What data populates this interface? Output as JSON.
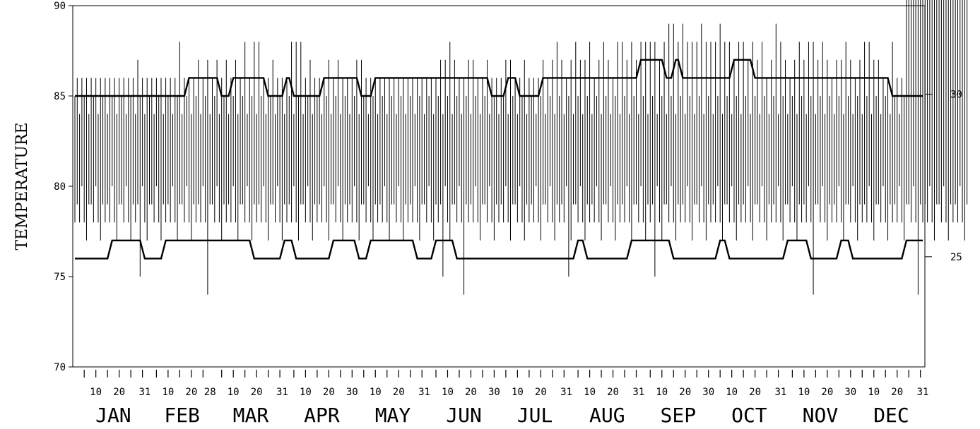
{
  "chart_data": {
    "type": "line",
    "title": "",
    "xlabel": "",
    "ylabel": "TEMPERATURE",
    "ylim": [
      70,
      90
    ],
    "yticks": [
      "70",
      "75",
      "80",
      "85",
      "90"
    ],
    "y2ticks": [
      {
        "label": "30",
        "value_left_axis": 85.1
      },
      {
        "label": "25",
        "value_left_axis": 76.1
      }
    ],
    "x_day_range": [
      1,
      365
    ],
    "months": [
      "JAN",
      "FEB",
      "MAR",
      "APR",
      "MAY",
      "JUN",
      "JUL",
      "AUG",
      "SEP",
      "OCT",
      "NOV",
      "DEC"
    ],
    "month_day_ticks": [
      [
        "10",
        "20",
        "31"
      ],
      [
        "10",
        "20",
        "28"
      ],
      [
        "10",
        "20",
        "31"
      ],
      [
        "10",
        "20",
        "30"
      ],
      [
        "10",
        "20",
        "31"
      ],
      [
        "10",
        "20",
        "30"
      ],
      [
        "10",
        "20",
        "31"
      ],
      [
        "10",
        "20",
        "31"
      ],
      [
        "10",
        "20",
        "30"
      ],
      [
        "10",
        "20",
        "31"
      ],
      [
        "10",
        "20",
        "30"
      ],
      [
        "10",
        "20",
        "31"
      ]
    ],
    "series": [
      {
        "type": "step",
        "points": [
          [
            1,
            85
          ],
          [
            48,
            85
          ],
          [
            50,
            86
          ],
          [
            62,
            86
          ],
          [
            64,
            85
          ],
          [
            67,
            85
          ],
          [
            69,
            86
          ],
          [
            82,
            86
          ],
          [
            84,
            85
          ],
          [
            90,
            85
          ],
          [
            92,
            86
          ],
          [
            93,
            86
          ],
          [
            95,
            85
          ],
          [
            106,
            85
          ],
          [
            108,
            86
          ],
          [
            122,
            86
          ],
          [
            124,
            85
          ],
          [
            128,
            85
          ],
          [
            130,
            86
          ],
          [
            178,
            86
          ],
          [
            180,
            85
          ],
          [
            185,
            85
          ],
          [
            187,
            86
          ],
          [
            190,
            86
          ],
          [
            192,
            85
          ],
          [
            200,
            85
          ],
          [
            202,
            86
          ],
          [
            242,
            86
          ],
          [
            244,
            87
          ],
          [
            253,
            87
          ],
          [
            255,
            86
          ],
          [
            257,
            86
          ],
          [
            259,
            87
          ],
          [
            260,
            87
          ],
          [
            262,
            86
          ],
          [
            282,
            86
          ],
          [
            284,
            87
          ],
          [
            291,
            87
          ],
          [
            293,
            86
          ],
          [
            350,
            86
          ],
          [
            352,
            85
          ],
          [
            365,
            85
          ]
        ]
      },
      {
        "type": "step",
        "points": [
          [
            1,
            76
          ],
          [
            15,
            76
          ],
          [
            17,
            77
          ],
          [
            29,
            77
          ],
          [
            31,
            76
          ],
          [
            38,
            76
          ],
          [
            40,
            77
          ],
          [
            76,
            77
          ],
          [
            78,
            76
          ],
          [
            89,
            76
          ],
          [
            91,
            77
          ],
          [
            94,
            77
          ],
          [
            96,
            76
          ],
          [
            110,
            76
          ],
          [
            112,
            77
          ],
          [
            121,
            77
          ],
          [
            123,
            76
          ],
          [
            126,
            76
          ],
          [
            128,
            77
          ],
          [
            146,
            77
          ],
          [
            148,
            76
          ],
          [
            154,
            76
          ],
          [
            156,
            77
          ],
          [
            163,
            77
          ],
          [
            165,
            76
          ],
          [
            215,
            76
          ],
          [
            217,
            77
          ],
          [
            219,
            77
          ],
          [
            221,
            76
          ],
          [
            238,
            76
          ],
          [
            240,
            77
          ],
          [
            256,
            77
          ],
          [
            258,
            76
          ],
          [
            276,
            76
          ],
          [
            278,
            77
          ],
          [
            280,
            77
          ],
          [
            282,
            76
          ],
          [
            305,
            76
          ],
          [
            307,
            77
          ],
          [
            315,
            77
          ],
          [
            317,
            76
          ],
          [
            328,
            76
          ],
          [
            330,
            77
          ],
          [
            333,
            77
          ],
          [
            335,
            76
          ],
          [
            356,
            76
          ],
          [
            358,
            77
          ],
          [
            364,
            77
          ],
          [
            365,
            77
          ]
        ]
      },
      {
        "type": "daily-range",
        "note_values": "daily min/max temperature bars, one per day",
        "min": [
          78,
          79,
          78,
          80,
          78,
          77,
          79,
          79,
          78,
          80,
          78,
          77,
          79,
          78,
          79,
          78,
          80,
          78,
          77,
          79,
          79,
          78,
          80,
          78,
          77,
          79,
          78,
          79,
          75,
          80,
          78,
          77,
          79,
          79,
          78,
          80,
          78,
          77,
          79,
          78,
          79,
          78,
          80,
          78,
          77,
          79,
          79,
          78,
          80,
          78,
          77,
          79,
          78,
          79,
          78,
          80,
          78,
          74,
          79,
          79,
          78,
          80,
          78,
          77,
          79,
          78,
          79,
          78,
          80,
          78,
          77,
          79,
          79,
          78,
          80,
          78,
          77,
          79,
          78,
          79,
          78,
          80,
          78,
          77,
          79,
          79,
          78,
          80,
          78,
          77,
          79,
          78,
          79,
          78,
          80,
          78,
          77,
          79,
          79,
          78,
          80,
          78,
          77,
          79,
          78,
          79,
          78,
          80,
          78,
          77,
          79,
          79,
          78,
          80,
          78,
          77,
          79,
          78,
          79,
          78,
          80,
          78,
          77,
          79,
          79,
          78,
          80,
          78,
          77,
          79,
          78,
          79,
          78,
          80,
          78,
          77,
          79,
          79,
          78,
          80,
          78,
          77,
          79,
          78,
          79,
          78,
          80,
          78,
          77,
          79,
          79,
          78,
          80,
          78,
          77,
          79,
          78,
          79,
          75,
          80,
          78,
          77,
          79,
          79,
          78,
          80,
          78,
          74,
          79,
          78,
          79,
          78,
          80,
          78,
          77,
          79,
          79,
          78,
          80,
          78,
          77,
          79,
          78,
          79,
          78,
          80,
          78,
          77,
          79,
          79,
          78,
          80,
          78,
          77,
          79,
          78,
          79,
          78,
          80,
          78,
          77,
          79,
          79,
          78,
          80,
          78,
          77,
          79,
          78,
          79,
          78,
          80,
          75,
          77,
          79,
          79,
          78,
          80,
          78,
          77,
          79,
          78,
          79,
          78,
          80,
          78,
          77,
          79,
          79,
          78,
          80,
          78,
          77,
          79,
          78,
          79,
          78,
          80,
          78,
          77,
          79,
          79,
          78,
          80,
          78,
          77,
          79,
          78,
          79,
          75,
          80,
          78,
          77,
          79,
          79,
          78,
          80,
          78,
          77,
          79,
          78,
          79,
          78,
          80,
          78,
          77,
          79,
          79,
          78,
          80,
          78,
          77,
          79,
          78,
          79,
          78,
          80,
          78,
          77,
          79,
          79,
          78,
          80,
          78,
          77,
          79,
          78,
          79,
          78,
          80,
          78,
          77,
          79,
          79,
          78,
          80,
          78,
          77,
          79,
          78,
          79,
          78,
          80,
          78,
          77,
          79,
          79,
          78,
          80,
          78,
          77,
          79,
          78,
          79,
          78,
          80,
          78,
          74,
          79,
          79,
          78,
          80,
          78,
          77,
          79,
          78,
          79,
          78,
          80,
          78,
          77,
          79,
          79,
          78,
          80,
          78,
          77,
          79,
          78,
          79,
          78,
          80,
          78,
          77,
          79,
          79,
          78,
          80,
          78,
          77,
          79,
          78,
          79,
          78,
          80,
          78,
          77,
          79,
          79,
          78,
          80,
          78,
          74,
          79,
          78,
          79,
          78,
          80,
          78,
          77,
          79,
          79,
          78,
          80,
          78,
          77,
          79,
          78,
          79,
          78,
          80,
          78,
          77,
          79
        ],
        "max": [
          85,
          86,
          84,
          86,
          85,
          86,
          84,
          86,
          85,
          86,
          84,
          86,
          85,
          86,
          84,
          86,
          85,
          86,
          84,
          86,
          85,
          86,
          84,
          86,
          85,
          86,
          84,
          87,
          85,
          86,
          84,
          86,
          85,
          86,
          84,
          86,
          85,
          86,
          84,
          86,
          85,
          86,
          84,
          86,
          85,
          88,
          84,
          86,
          85,
          86,
          84,
          86,
          85,
          87,
          84,
          86,
          85,
          87,
          84,
          86,
          85,
          87,
          84,
          86,
          85,
          87,
          84,
          86,
          85,
          87,
          84,
          86,
          85,
          88,
          84,
          86,
          85,
          88,
          84,
          88,
          85,
          86,
          84,
          86,
          85,
          87,
          84,
          86,
          85,
          86,
          84,
          86,
          85,
          88,
          84,
          88,
          85,
          88,
          84,
          86,
          85,
          87,
          84,
          86,
          85,
          86,
          84,
          86,
          85,
          87,
          84,
          86,
          85,
          87,
          84,
          86,
          85,
          86,
          84,
          86,
          85,
          87,
          84,
          87,
          85,
          86,
          84,
          86,
          85,
          86,
          84,
          86,
          85,
          86,
          84,
          86,
          85,
          86,
          84,
          86,
          85,
          86,
          84,
          86,
          85,
          86,
          84,
          86,
          85,
          86,
          84,
          86,
          85,
          86,
          84,
          86,
          85,
          87,
          84,
          87,
          85,
          88,
          84,
          87,
          85,
          86,
          84,
          86,
          85,
          87,
          84,
          87,
          85,
          86,
          84,
          86,
          85,
          87,
          84,
          86,
          85,
          86,
          84,
          86,
          85,
          87,
          84,
          87,
          85,
          86,
          84,
          86,
          85,
          87,
          84,
          86,
          85,
          86,
          84,
          86,
          85,
          87,
          84,
          86,
          85,
          87,
          84,
          88,
          85,
          87,
          84,
          86,
          85,
          87,
          84,
          88,
          85,
          87,
          84,
          87,
          85,
          88,
          84,
          86,
          85,
          87,
          84,
          88,
          85,
          87,
          84,
          86,
          85,
          88,
          84,
          88,
          85,
          87,
          84,
          88,
          85,
          87,
          84,
          88,
          85,
          88,
          84,
          88,
          85,
          88,
          84,
          87,
          85,
          88,
          84,
          89,
          85,
          89,
          84,
          88,
          85,
          89,
          84,
          88,
          85,
          88,
          84,
          88,
          85,
          89,
          84,
          88,
          85,
          88,
          84,
          88,
          85,
          89,
          84,
          88,
          85,
          88,
          84,
          87,
          85,
          88,
          84,
          88,
          85,
          87,
          84,
          88,
          85,
          87,
          84,
          88,
          85,
          86,
          84,
          87,
          85,
          89,
          84,
          88,
          85,
          87,
          84,
          86,
          85,
          87,
          84,
          88,
          85,
          87,
          84,
          88,
          85,
          88,
          84,
          87,
          85,
          88,
          84,
          87,
          85,
          86,
          84,
          87,
          85,
          87,
          84,
          88,
          85,
          87,
          84,
          86,
          85,
          87,
          84,
          88,
          85,
          88,
          84,
          87,
          85,
          87,
          84,
          86,
          85,
          86,
          84,
          88,
          85,
          86,
          84,
          86,
          85
        ]
      }
    ]
  }
}
